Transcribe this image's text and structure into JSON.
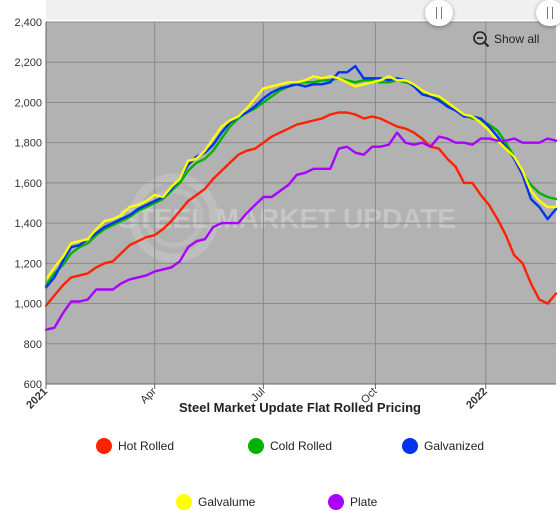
{
  "chart_data": {
    "type": "line",
    "title": "Steel Market Update Flat Rolled Pricing",
    "watermark": "STEEL MARKET UPDATE",
    "y_ticks": [
      "600",
      "800",
      "1,000",
      "1,200",
      "1,400",
      "1,600",
      "1,800",
      "2,000",
      "2,200",
      "2,400"
    ],
    "ylim": [
      600,
      2400
    ],
    "x_ticks": [
      {
        "label": "2021",
        "x": 0,
        "bold": true
      },
      {
        "label": "Apr",
        "x": 13,
        "bold": false
      },
      {
        "label": "Jul",
        "x": 26,
        "bold": false
      },
      {
        "label": "Oct",
        "x": 39.4,
        "bold": false
      },
      {
        "label": "2022",
        "x": 52.6,
        "bold": true
      }
    ],
    "xlim": [
      0,
      61
    ],
    "grid": true,
    "show_all_label": "Show all",
    "x": [
      0,
      1,
      2,
      3,
      4,
      5,
      6,
      7,
      8,
      9,
      10,
      11,
      12,
      13,
      14,
      15,
      16,
      17,
      18,
      19,
      20,
      21,
      22,
      23,
      24,
      25,
      26,
      27,
      28,
      29,
      30,
      31,
      32,
      33,
      34,
      35,
      36,
      37,
      38,
      39,
      40,
      41,
      42,
      43,
      44,
      45,
      46,
      47,
      48,
      49,
      50,
      51,
      52,
      53,
      54,
      55,
      56,
      57,
      58,
      59,
      60,
      61
    ],
    "series": [
      {
        "name": "Hot Rolled",
        "color": "#ff2200",
        "values": [
          990,
          1040,
          1090,
          1130,
          1140,
          1150,
          1180,
          1200,
          1210,
          1250,
          1290,
          1310,
          1330,
          1340,
          1370,
          1410,
          1460,
          1510,
          1540,
          1570,
          1620,
          1660,
          1700,
          1740,
          1760,
          1770,
          1800,
          1830,
          1850,
          1870,
          1890,
          1900,
          1910,
          1920,
          1940,
          1950,
          1950,
          1940,
          1920,
          1930,
          1920,
          1900,
          1880,
          1870,
          1850,
          1820,
          1780,
          1770,
          1720,
          1680,
          1600,
          1600,
          1540,
          1490,
          1420,
          1340,
          1240,
          1200,
          1100,
          1020,
          1000,
          1050
        ]
      },
      {
        "name": "Cold Rolled",
        "color": "#00b300",
        "values": [
          1090,
          1150,
          1190,
          1250,
          1280,
          1300,
          1340,
          1370,
          1390,
          1410,
          1430,
          1460,
          1480,
          1500,
          1520,
          1560,
          1600,
          1660,
          1700,
          1720,
          1760,
          1820,
          1880,
          1920,
          1950,
          1970,
          2000,
          2030,
          2060,
          2080,
          2100,
          2100,
          2100,
          2110,
          2110,
          2120,
          2110,
          2100,
          2110,
          2110,
          2100,
          2100,
          2110,
          2100,
          2090,
          2060,
          2040,
          2020,
          1990,
          1960,
          1940,
          1920,
          1910,
          1890,
          1860,
          1800,
          1730,
          1650,
          1590,
          1550,
          1530,
          1520
        ]
      },
      {
        "name": "Galvanized",
        "color": "#0033ee",
        "values": [
          1080,
          1130,
          1210,
          1280,
          1290,
          1320,
          1350,
          1380,
          1400,
          1420,
          1440,
          1470,
          1490,
          1510,
          1530,
          1570,
          1620,
          1690,
          1730,
          1750,
          1790,
          1850,
          1900,
          1930,
          1950,
          1980,
          2020,
          2050,
          2070,
          2080,
          2090,
          2080,
          2090,
          2090,
          2100,
          2150,
          2150,
          2180,
          2120,
          2120,
          2120,
          2110,
          2120,
          2110,
          2080,
          2040,
          2030,
          2010,
          1980,
          1960,
          1930,
          1930,
          1920,
          1880,
          1830,
          1780,
          1720,
          1640,
          1520,
          1480,
          1420,
          1470
        ]
      },
      {
        "name": "Galvalume",
        "color": "#ffff00",
        "values": [
          1120,
          1180,
          1230,
          1300,
          1310,
          1320,
          1370,
          1410,
          1420,
          1440,
          1480,
          1490,
          1510,
          1540,
          1530,
          1580,
          1620,
          1710,
          1720,
          1760,
          1820,
          1880,
          1910,
          1930,
          1970,
          2020,
          2070,
          2080,
          2090,
          2100,
          2100,
          2110,
          2130,
          2120,
          2130,
          2120,
          2100,
          2080,
          2090,
          2100,
          2110,
          2130,
          2110,
          2110,
          2090,
          2060,
          2040,
          2030,
          2000,
          1970,
          1940,
          1930,
          1900,
          1860,
          1810,
          1770,
          1730,
          1660,
          1560,
          1510,
          1480,
          1480
        ]
      },
      {
        "name": "Plate",
        "color": "#aa00ff",
        "values": [
          870,
          880,
          950,
          1010,
          1010,
          1020,
          1070,
          1070,
          1070,
          1100,
          1120,
          1130,
          1140,
          1160,
          1170,
          1180,
          1210,
          1280,
          1310,
          1320,
          1380,
          1400,
          1400,
          1400,
          1450,
          1490,
          1530,
          1530,
          1560,
          1590,
          1640,
          1650,
          1670,
          1670,
          1670,
          1770,
          1780,
          1750,
          1740,
          1780,
          1780,
          1790,
          1850,
          1800,
          1790,
          1800,
          1780,
          1830,
          1820,
          1800,
          1800,
          1790,
          1820,
          1820,
          1810,
          1810,
          1820,
          1800,
          1800,
          1800,
          1820,
          1810
        ]
      }
    ]
  }
}
